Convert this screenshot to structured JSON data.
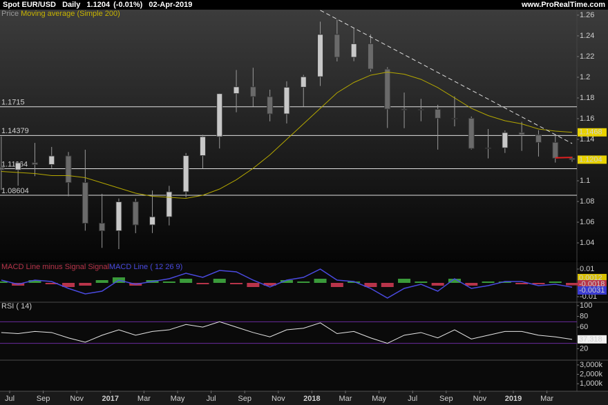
{
  "header": {
    "symbol": "Spot EUR/USD",
    "timeframe": "Daily",
    "change": "(-0.01%)",
    "date": "02-Apr-2019",
    "site": "www.ProRealTime.com"
  },
  "chart_data": [
    {
      "type": "candlestick",
      "name": "Price",
      "x": [
        "2016-06",
        "2016-07",
        "2016-08",
        "2016-09",
        "2016-10",
        "2016-11",
        "2016-12",
        "2017-01",
        "2017-02",
        "2017-03",
        "2017-04",
        "2017-05",
        "2017-06",
        "2017-07",
        "2017-08",
        "2017-09",
        "2017-10",
        "2017-11",
        "2017-12",
        "2018-01",
        "2018-02",
        "2018-03",
        "2018-04",
        "2018-05",
        "2018-06",
        "2018-07",
        "2018-08",
        "2018-09",
        "2018-10",
        "2018-11",
        "2018-12",
        "2019-01",
        "2019-02",
        "2019-03",
        "2019-04"
      ],
      "open": [
        1.113,
        1.1105,
        1.1174,
        1.1157,
        1.124,
        1.0983,
        1.059,
        1.0517,
        1.0797,
        1.0574,
        1.0652,
        1.0894,
        1.1243,
        1.1426,
        1.1842,
        1.1908,
        1.1813,
        1.1646,
        1.1904,
        1.2005,
        1.2414,
        1.2193,
        1.2324,
        1.2079,
        1.1693,
        1.1683,
        1.169,
        1.1604,
        1.1604,
        1.1312,
        1.1318,
        1.1466,
        1.1445,
        1.1371,
        1.1218
      ],
      "high": [
        1.1428,
        1.1186,
        1.1366,
        1.1327,
        1.1278,
        1.13,
        1.0874,
        1.0829,
        1.0828,
        1.0906,
        1.0951,
        1.1268,
        1.1445,
        1.1846,
        1.207,
        1.2092,
        1.188,
        1.1961,
        1.2023,
        1.2537,
        1.2556,
        1.2476,
        1.2414,
        1.2097,
        1.1852,
        1.1791,
        1.1734,
        1.1815,
        1.1621,
        1.15,
        1.1486,
        1.157,
        1.1488,
        1.1448,
        1.1232
      ],
      "low": [
        1.0912,
        1.0952,
        1.1045,
        1.1123,
        1.0851,
        1.0518,
        1.0352,
        1.034,
        1.0494,
        1.0495,
        1.0569,
        1.0839,
        1.1118,
        1.1312,
        1.1662,
        1.1717,
        1.1574,
        1.1554,
        1.1717,
        1.1916,
        1.2153,
        1.2155,
        1.2055,
        1.151,
        1.1508,
        1.1575,
        1.1301,
        1.1526,
        1.1302,
        1.1216,
        1.1269,
        1.1289,
        1.1234,
        1.1176,
        1.1184
      ],
      "close": [
        1.1105,
        1.1174,
        1.1157,
        1.124,
        1.0983,
        1.059,
        1.0517,
        1.0797,
        1.0574,
        1.0652,
        1.0894,
        1.1243,
        1.1426,
        1.1842,
        1.1908,
        1.1813,
        1.1646,
        1.1904,
        1.2005,
        1.2414,
        1.2193,
        1.2324,
        1.2079,
        1.1693,
        1.1683,
        1.169,
        1.1604,
        1.1604,
        1.1312,
        1.1318,
        1.1466,
        1.1445,
        1.1371,
        1.1218,
        1.1204
      ],
      "up_color": "#c8c8c8",
      "down_color": "#6a6a6a",
      "series": [
        {
          "name": "Moving average (Simple 200)",
          "color": "#b5a800",
          "values": [
            1.109,
            1.108,
            1.107,
            1.105,
            1.105,
            1.103,
            1.098,
            1.093,
            1.088,
            1.085,
            1.084,
            1.083,
            1.086,
            1.092,
            1.101,
            1.112,
            1.125,
            1.14,
            1.155,
            1.17,
            1.185,
            1.195,
            1.202,
            1.205,
            1.203,
            1.198,
            1.19,
            1.18,
            1.17,
            1.163,
            1.158,
            1.155,
            1.15,
            1.148,
            1.1468
          ]
        }
      ],
      "ylim": [
        1.0227,
        1.2653
      ],
      "yticks": [
        1.04,
        1.06,
        1.08,
        1.1,
        1.14,
        1.16,
        1.18,
        1.2,
        1.22,
        1.24,
        1.26
      ],
      "levels": [
        1.1715,
        1.14379,
        1.11164,
        1.08604
      ],
      "trendline": {
        "x": [
          "2018-01",
          "2019-04"
        ],
        "y": [
          1.2647,
          1.136
        ]
      },
      "support": {
        "x": [
          "2019-03",
          "2019-04"
        ],
        "y": [
          1.1222,
          1.1226
        ],
        "color": "#e02020"
      },
      "xticks": [
        {
          "value": "2016-07",
          "label": "Jul"
        },
        {
          "value": "2016-09",
          "label": "Sep"
        },
        {
          "value": "2016-11",
          "label": "Nov"
        },
        {
          "value": "2017-01",
          "label": "2017"
        },
        {
          "value": "2017-03",
          "label": "Mar"
        },
        {
          "value": "2017-05",
          "label": "May"
        },
        {
          "value": "2017-07",
          "label": "Jul"
        },
        {
          "value": "2017-09",
          "label": "Sep"
        },
        {
          "value": "2017-11",
          "label": "Nov"
        },
        {
          "value": "2018-01",
          "label": "2018"
        },
        {
          "value": "2018-03",
          "label": "Mar"
        },
        {
          "value": "2018-05",
          "label": "May"
        },
        {
          "value": "2018-07",
          "label": "Jul"
        },
        {
          "value": "2018-09",
          "label": "Sep"
        },
        {
          "value": "2018-11",
          "label": "Nov"
        },
        {
          "value": "2019-01",
          "label": "2019"
        },
        {
          "value": "2019-03",
          "label": "Mar"
        }
      ]
    },
    {
      "type": "macd",
      "series": [
        {
          "name": "MACD Line minus Signal Signal",
          "color": "#b8344a",
          "up_color": "#3a9a3a",
          "values": [
            0.001,
            -0.002,
            0.002,
            -0.001,
            -0.003,
            -0.002,
            0.002,
            0.004,
            -0.002,
            0.002,
            0.001,
            0.003,
            -0.001,
            0.003,
            -0.001,
            -0.003,
            -0.002,
            0.002,
            0.001,
            0.003,
            -0.003,
            0.001,
            -0.003,
            -0.003,
            0.003,
            0.001,
            -0.002,
            0.003,
            -0.002,
            0.001,
            0.001,
            -0.001,
            -0.001,
            0.001,
            -0.0018
          ]
        },
        {
          "name": "MACD Line ( 12 26 9)",
          "color": "#4a4ae0",
          "values": [
            0.002,
            -0.001,
            0.002,
            0.001,
            -0.004,
            -0.008,
            -0.006,
            0.002,
            -0.001,
            0.001,
            0.003,
            0.007,
            0.004,
            0.009,
            0.008,
            0.002,
            -0.003,
            0.002,
            0.004,
            0.01,
            0.002,
            0.001,
            -0.004,
            -0.011,
            -0.004,
            -0.001,
            -0.006,
            0.003,
            -0.004,
            -0.002,
            0.001,
            0.001,
            -0.002,
            -0.001,
            -0.0031
          ]
        }
      ],
      "ylim": [
        -0.0135,
        0.015
      ],
      "yticks": [
        -0.01,
        0.01
      ],
      "last_values": [
        0.0012,
        -0.0018,
        -0.0031
      ],
      "last_value_colors": [
        "#d8c000",
        "#b8344a",
        "#3a3ad0"
      ]
    },
    {
      "type": "rsi",
      "series": [
        {
          "name": "RSI ( 14)",
          "color": "#e8e8e8",
          "values": [
            50,
            48,
            52,
            50,
            40,
            32,
            45,
            55,
            45,
            52,
            55,
            65,
            60,
            70,
            60,
            50,
            42,
            55,
            58,
            68,
            48,
            52,
            40,
            30,
            45,
            50,
            40,
            55,
            38,
            45,
            52,
            52,
            45,
            42,
            37.318
          ]
        }
      ],
      "levels": [
        70,
        30
      ],
      "level_color": "#6a2aa0",
      "ylim": [
        0,
        105
      ],
      "yticks": [
        20,
        60,
        80,
        100
      ]
    },
    {
      "type": "volume",
      "ylim": [
        280,
        3430
      ],
      "yticks": [
        {
          "value": 1000,
          "label": "1,000k"
        },
        {
          "value": 2000,
          "label": "2,000k"
        },
        {
          "value": 3000,
          "label": "3,000k"
        }
      ]
    }
  ]
}
